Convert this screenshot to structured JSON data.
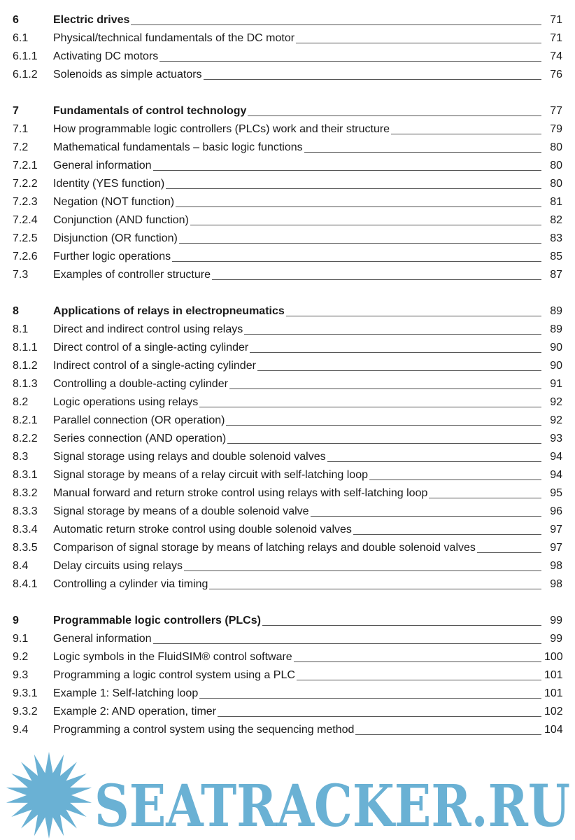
{
  "toc": [
    {
      "num": "6",
      "title": "Electric drives",
      "page": "71",
      "chapter": true
    },
    {
      "num": "6.1",
      "title": "Physical/technical fundamentals of the DC motor",
      "page": "71"
    },
    {
      "num": "6.1.1",
      "title": "Activating DC motors",
      "page": "74"
    },
    {
      "num": "6.1.2",
      "title": "Solenoids as simple actuators",
      "page": "76"
    },
    null,
    {
      "num": "7",
      "title": "Fundamentals of control technology",
      "page": "77",
      "chapter": true
    },
    {
      "num": "7.1",
      "title": "How programmable logic controllers (PLCs) work and their structure",
      "page": "79"
    },
    {
      "num": "7.2",
      "title": "Mathematical fundamentals – basic logic functions",
      "page": "80"
    },
    {
      "num": "7.2.1",
      "title": "General information",
      "page": "80"
    },
    {
      "num": "7.2.2",
      "title": "Identity (YES function)",
      "page": "80"
    },
    {
      "num": "7.2.3",
      "title": "Negation (NOT function)",
      "page": "81"
    },
    {
      "num": "7.2.4",
      "title": "Conjunction (AND function)",
      "page": "82"
    },
    {
      "num": "7.2.5",
      "title": "Disjunction (OR function)",
      "page": "83"
    },
    {
      "num": "7.2.6",
      "title": "Further logic operations",
      "page": "85"
    },
    {
      "num": "7.3",
      "title": "Examples of controller structure",
      "page": "87"
    },
    null,
    {
      "num": "8",
      "title": "Applications of relays in electropneumatics",
      "page": "89",
      "chapter": true
    },
    {
      "num": "8.1",
      "title": "Direct and indirect control using relays",
      "page": "89"
    },
    {
      "num": "8.1.1",
      "title": "Direct control of a single-acting cylinder",
      "page": "90"
    },
    {
      "num": "8.1.2",
      "title": "Indirect control of a single-acting cylinder",
      "page": "90"
    },
    {
      "num": "8.1.3",
      "title": "Controlling a double-acting cylinder",
      "page": "91"
    },
    {
      "num": "8.2",
      "title": "Logic operations using relays",
      "page": "92"
    },
    {
      "num": "8.2.1",
      "title": "Parallel connection (OR operation)",
      "page": "92"
    },
    {
      "num": "8.2.2",
      "title": "Series connection (AND operation)",
      "page": "93"
    },
    {
      "num": "8.3",
      "title": "Signal storage using relays and double solenoid valves",
      "page": "94"
    },
    {
      "num": "8.3.1",
      "title": "Signal storage by means of a relay circuit with self-latching loop",
      "page": "94"
    },
    {
      "num": "8.3.2",
      "title": "Manual forward and return stroke control using relays with self-latching loop",
      "page": "95"
    },
    {
      "num": "8.3.3",
      "title": "Signal storage by means of a double solenoid valve",
      "page": "96"
    },
    {
      "num": "8.3.4",
      "title": "Automatic return stroke control using double solenoid valves",
      "page": "97"
    },
    {
      "num": "8.3.5",
      "title": "Comparison of signal storage by means of latching relays and double solenoid valves",
      "page": "97"
    },
    {
      "num": "8.4",
      "title": "Delay circuits using relays",
      "page": "98"
    },
    {
      "num": "8.4.1",
      "title": "Controlling a cylinder via timing",
      "page": "98"
    },
    null,
    {
      "num": "9",
      "title": "Programmable logic controllers (PLCs)",
      "page": "99",
      "chapter": true
    },
    {
      "num": "9.1",
      "title": "General information",
      "page": "99"
    },
    {
      "num": "9.2",
      "title": "Logic symbols in the FluidSIM® control software",
      "page": "100"
    },
    {
      "num": "9.3",
      "title": "Programming a logic control system using a PLC",
      "page": "101"
    },
    {
      "num": "9.3.1",
      "title": "Example 1: Self-latching loop",
      "page": "101"
    },
    {
      "num": "9.3.2",
      "title": "Example 2: AND operation, timer",
      "page": "102"
    },
    {
      "num": "9.4",
      "title": "Programming a control system using the sequencing method",
      "page": "104"
    }
  ],
  "watermark": {
    "text": "SEATRACKER.RU",
    "color": "#5aa8cf"
  }
}
